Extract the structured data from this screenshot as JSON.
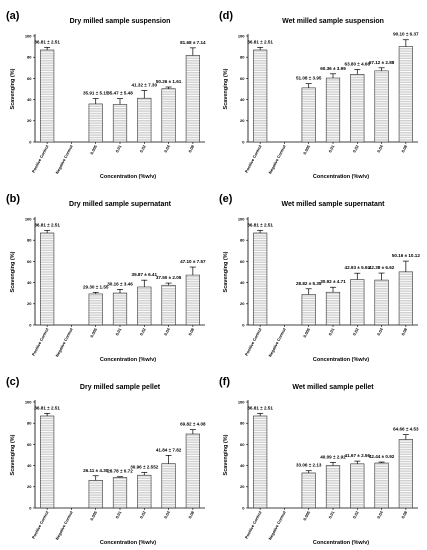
{
  "chart_data": [
    {
      "id": "a",
      "panel_label": "(a)",
      "type": "bar",
      "title": "Dry milled sample suspension",
      "xlabel": "Concentration (%w/v)",
      "ylabel": "Scavenging (%)",
      "ylim": [
        0,
        100
      ],
      "yticks": [
        0,
        20,
        40,
        60,
        80,
        100
      ],
      "categories": [
        "Positive Control",
        "Negative Control",
        "0.005",
        "0.01",
        "0.02",
        "0.04",
        "0.08"
      ],
      "values": [
        86.81,
        0,
        35.91,
        35.47,
        41.32,
        50.26,
        81.68
      ],
      "errors": [
        2.51,
        0,
        5.15,
        5.48,
        7.3,
        1.61,
        7.14
      ],
      "labels": [
        "86.81 ± 2.51",
        "",
        "35.91 ± 5.15",
        "35.47 ± 5.48",
        "41.32 ± 7.30",
        "50.26 ± 1.61",
        "81.68 ± 7.14"
      ],
      "bar_color": "#d4d4d4",
      "stripe_color": "#ffffff"
    },
    {
      "id": "b",
      "panel_label": "(b)",
      "type": "bar",
      "title": "Dry milled sample supernatant",
      "xlabel": "Concentration (%w/v)",
      "ylabel": "Scavenging (%)",
      "ylim": [
        0,
        100
      ],
      "yticks": [
        0,
        20,
        40,
        60,
        80,
        100
      ],
      "categories": [
        "Positive Control",
        "Negative Control",
        "0.005",
        "0.01",
        "0.02",
        "0.04",
        "0.08"
      ],
      "values": [
        86.81,
        0,
        29.3,
        30.16,
        35.87,
        37.5,
        47.1
      ],
      "errors": [
        2.51,
        0,
        1.55,
        3.46,
        6.41,
        2.05,
        7.57
      ],
      "labels": [
        "86.81 ± 2.51",
        "",
        "29.30 ± 1.55",
        "30.16 ± 3.46",
        "35.87 ± 6.41",
        "37.50 ± 2.05",
        "47.10 ± 7.57"
      ],
      "bar_color": "#d4d4d4",
      "stripe_color": "#ffffff"
    },
    {
      "id": "c",
      "panel_label": "(c)",
      "type": "bar",
      "title": "Dry milled sample pellet",
      "xlabel": "Concentration (%w/v)",
      "ylabel": "Scavenging (%)",
      "ylim": [
        0,
        100
      ],
      "yticks": [
        0,
        20,
        40,
        60,
        80,
        100
      ],
      "categories": [
        "Positive Control",
        "Negative Control",
        "0.005",
        "0.01",
        "0.02",
        "0.04",
        "0.08"
      ],
      "values": [
        86.81,
        0,
        26.11,
        28.78,
        30.96,
        41.84,
        69.82
      ],
      "errors": [
        2.51,
        0,
        4.3,
        0.72,
        2.552,
        7.82,
        4.08
      ],
      "labels": [
        "86.81 ± 2.51",
        "",
        "26.11 ± 4.30",
        "28.78 ± 0.72",
        "30.96 ± 2.552",
        "41.84 ± 7.82",
        "69.82 ± 4.08"
      ],
      "bar_color": "#d4d4d4",
      "stripe_color": "#ffffff"
    },
    {
      "id": "d",
      "panel_label": "(d)",
      "type": "bar",
      "title": "Wet milled sample suspension",
      "xlabel": "Concentration (%w/v)",
      "ylabel": "Scavenging (%)",
      "ylim": [
        0,
        100
      ],
      "yticks": [
        0,
        20,
        40,
        60,
        80,
        100
      ],
      "categories": [
        "Positive Control",
        "Negative Control",
        "0.005",
        "0.01",
        "0.02",
        "0.04",
        "0.08"
      ],
      "values": [
        86.81,
        0,
        51.08,
        60.36,
        63.8,
        67.12,
        90.1
      ],
      "errors": [
        2.51,
        0,
        3.95,
        3.99,
        4.66,
        2.88,
        6.37
      ],
      "labels": [
        "86.81 ± 2.51",
        "",
        "51.08 ± 3.95",
        "60.36 ± 3.99",
        "63.80 ± 4.66",
        "67.12 ± 2.88",
        "90.10 ± 6.37"
      ],
      "bar_color": "#d4d4d4",
      "stripe_color": "#ffffff"
    },
    {
      "id": "e",
      "panel_label": "(e)",
      "type": "bar",
      "title": "Wet milled sample supernatant",
      "xlabel": "Concentration (%w/v)",
      "ylabel": "Scavenging (%)",
      "ylim": [
        0,
        100
      ],
      "yticks": [
        0,
        20,
        40,
        60,
        80,
        100
      ],
      "categories": [
        "Positive Control",
        "Negative Control",
        "0.005",
        "0.01",
        "0.02",
        "0.04",
        "0.08"
      ],
      "values": [
        86.81,
        0,
        28.82,
        30.92,
        42.93,
        42.38,
        50.16
      ],
      "errors": [
        2.51,
        0,
        5.35,
        4.71,
        5.92,
        6.62,
        10.12
      ],
      "labels": [
        "86.81 ± 2.51",
        "",
        "28.82 ± 5.35",
        "30.92 ± 4.71",
        "42.93 ± 5.92",
        "42.38 ± 6.62",
        "50.16 ± 10.12"
      ],
      "bar_color": "#d4d4d4",
      "stripe_color": "#ffffff"
    },
    {
      "id": "f",
      "panel_label": "(f)",
      "type": "bar",
      "title": "Wet milled sample pellet",
      "xlabel": "Concentration (%w/v)",
      "ylabel": "Scavenging (%)",
      "ylim": [
        0,
        100
      ],
      "yticks": [
        0,
        20,
        40,
        60,
        80,
        100
      ],
      "categories": [
        "Positive Control",
        "Negative Control",
        "0.005",
        "0.01",
        "0.02",
        "0.04",
        "0.08"
      ],
      "values": [
        86.81,
        0,
        33.06,
        40.09,
        41.67,
        42.44,
        64.66
      ],
      "errors": [
        2.51,
        0,
        2.13,
        2.92,
        2.56,
        0.92,
        4.53
      ],
      "labels": [
        "86.81 ± 2.51",
        "",
        "33.06 ± 2.13",
        "40.09 ± 2.92",
        "41.67 ± 2.56",
        "42.44 ± 0.92",
        "64.66 ± 4.53"
      ],
      "bar_color": "#d4d4d4",
      "stripe_color": "#ffffff"
    }
  ]
}
